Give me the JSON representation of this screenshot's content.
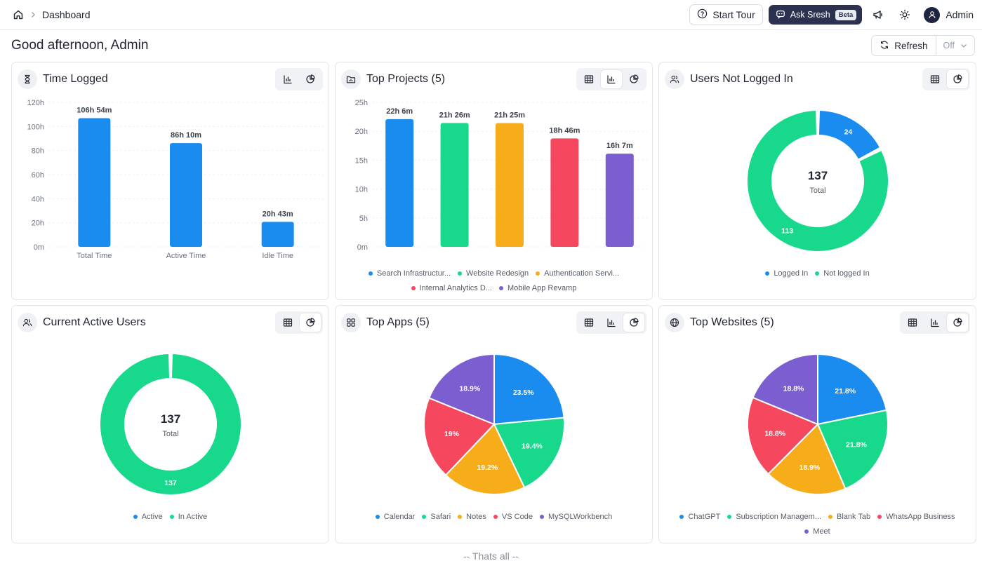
{
  "breadcrumb": {
    "home_icon": "home-icon",
    "current": "Dashboard"
  },
  "header": {
    "start_tour": "Start Tour",
    "ask_label": "Ask Sresh",
    "ask_badge": "Beta",
    "user_name": "Admin"
  },
  "greeting": "Good afternoon, Admin",
  "refresh": {
    "label": "Refresh",
    "interval": "Off"
  },
  "cards": {
    "time_logged": {
      "title": "Time Logged"
    },
    "top_projects": {
      "title": "Top Projects (5)"
    },
    "users_not_logged": {
      "title": "Users Not Logged In"
    },
    "current_active": {
      "title": "Current Active Users"
    },
    "top_apps": {
      "title": "Top Apps (5)"
    },
    "top_websites": {
      "title": "Top Websites (5)"
    }
  },
  "chart_data": [
    {
      "id": "time_logged",
      "type": "bar",
      "categories": [
        "Total Time",
        "Active Time",
        "Idle Time"
      ],
      "values": [
        106.9,
        86.17,
        20.72
      ],
      "data_labels": [
        "106h 54m",
        "86h 10m",
        "20h 43m"
      ],
      "yticks": [
        "0m",
        "20h",
        "40h",
        "60h",
        "80h",
        "100h",
        "120h"
      ],
      "ylim": [
        0,
        120
      ],
      "colors": [
        "#1a8cf0",
        "#1a8cf0",
        "#1a8cf0"
      ]
    },
    {
      "id": "top_projects",
      "type": "bar",
      "categories": [
        "Search Infrastructur...",
        "Website Redesign",
        "Authentication Servi...",
        "Internal Analytics D...",
        "Mobile App Revamp"
      ],
      "values": [
        22.1,
        21.43,
        21.42,
        18.77,
        16.12
      ],
      "data_labels": [
        "22h 6m",
        "21h 26m",
        "21h 25m",
        "18h 46m",
        "16h 7m"
      ],
      "yticks": [
        "0m",
        "5h",
        "10h",
        "15h",
        "20h",
        "25h"
      ],
      "ylim": [
        0,
        25
      ],
      "colors": [
        "#1a8cf0",
        "#18d98b",
        "#f7ad19",
        "#f5475e",
        "#7b5fd0"
      ]
    },
    {
      "id": "users_not_logged",
      "type": "pie",
      "donut": true,
      "categories": [
        "Logged In",
        "Not logged In"
      ],
      "values": [
        24,
        113
      ],
      "data_labels": [
        "24",
        "113"
      ],
      "center_value": "137",
      "center_label": "Total",
      "colors": [
        "#1a8cf0",
        "#18d98b"
      ]
    },
    {
      "id": "current_active",
      "type": "pie",
      "donut": true,
      "categories": [
        "Active",
        "In Active"
      ],
      "values": [
        0,
        137
      ],
      "data_labels": [
        "",
        "137"
      ],
      "center_value": "137",
      "center_label": "Total",
      "colors": [
        "#1a8cf0",
        "#18d98b"
      ]
    },
    {
      "id": "top_apps",
      "type": "pie",
      "donut": false,
      "categories": [
        "Calendar",
        "Safari",
        "Notes",
        "VS Code",
        "MySQLWorkbench"
      ],
      "values": [
        23.5,
        19.4,
        19.2,
        19,
        18.9
      ],
      "data_labels": [
        "23.5%",
        "19.4%",
        "19.2%",
        "19%",
        "18.9%"
      ],
      "colors": [
        "#1a8cf0",
        "#18d98b",
        "#f7ad19",
        "#f5475e",
        "#7b5fd0"
      ]
    },
    {
      "id": "top_websites",
      "type": "pie",
      "donut": false,
      "categories": [
        "ChatGPT",
        "Subscription Managem...",
        "Blank Tab",
        "WhatsApp Business",
        "Meet"
      ],
      "values": [
        21.8,
        21.8,
        18.9,
        18.8,
        18.8
      ],
      "data_labels": [
        "21.8%",
        "21.8%",
        "18.9%",
        "18.8%",
        "18.8%"
      ],
      "colors": [
        "#1a8cf0",
        "#18d98b",
        "#f7ad19",
        "#f5475e",
        "#7b5fd0"
      ]
    }
  ],
  "footer": "-- Thats all --"
}
